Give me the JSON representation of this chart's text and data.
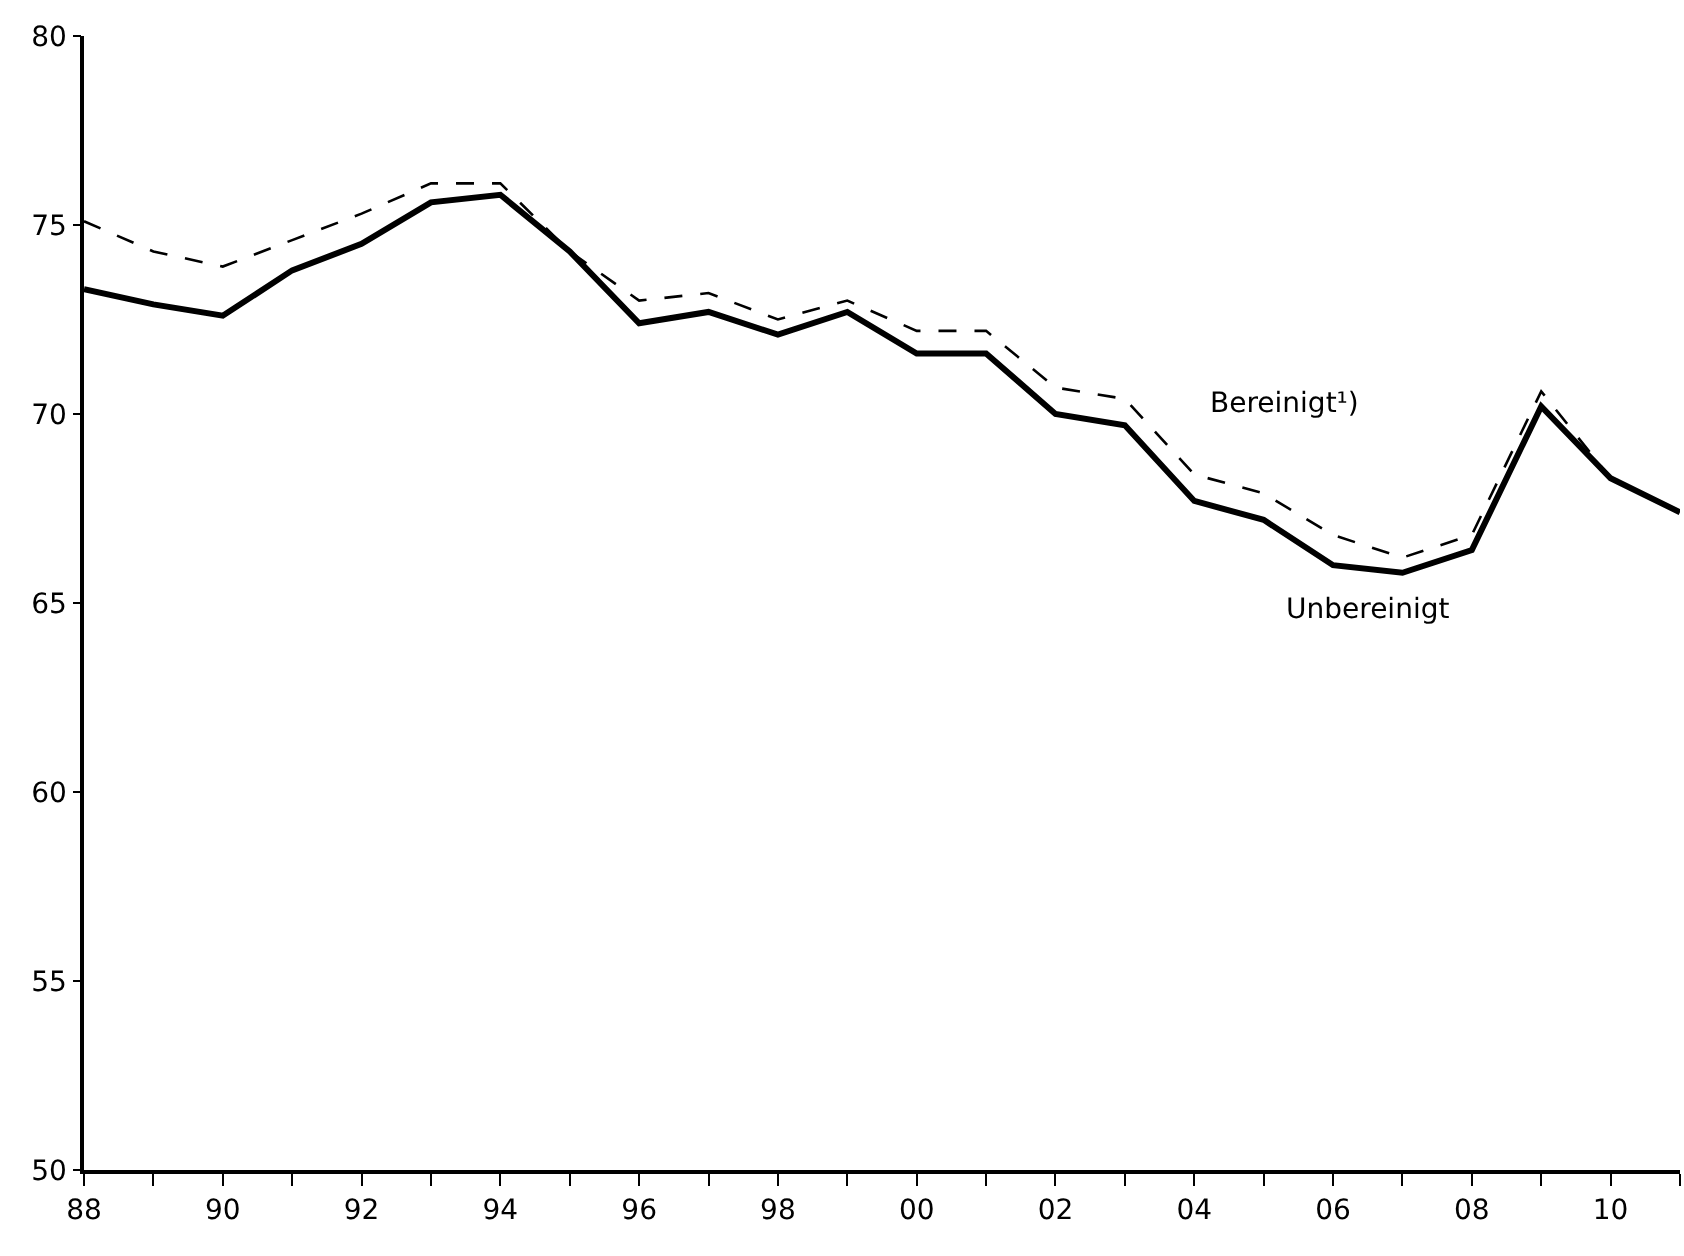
{
  "chart_data": {
    "type": "line",
    "x": [
      1988,
      1989,
      1990,
      1991,
      1992,
      1993,
      1994,
      1995,
      1996,
      1997,
      1998,
      1999,
      2000,
      2001,
      2002,
      2003,
      2004,
      2005,
      2006,
      2007,
      2008,
      2009,
      2010,
      2011
    ],
    "series": [
      {
        "name": "Bereinigt¹)",
        "color": "#000000",
        "line_style": "dashed",
        "values": [
          75.1,
          74.3,
          73.9,
          74.6,
          75.3,
          76.1,
          76.1,
          74.3,
          73.0,
          73.2,
          72.5,
          73.0,
          72.2,
          72.2,
          70.7,
          70.4,
          68.4,
          67.9,
          66.8,
          66.2,
          66.8,
          70.6,
          68.3,
          67.4
        ]
      },
      {
        "name": "Unbereinigt",
        "color": "#000000",
        "line_style": "solid",
        "values": [
          73.3,
          72.9,
          72.6,
          73.8,
          74.5,
          75.6,
          75.8,
          74.3,
          72.4,
          72.7,
          72.1,
          72.7,
          71.6,
          71.6,
          70.0,
          69.7,
          67.7,
          67.2,
          66.0,
          65.8,
          66.4,
          70.2,
          68.3,
          67.4
        ]
      }
    ],
    "xlim": [
      1988,
      2011
    ],
    "xticks": [
      {
        "value": 1988,
        "label": "88"
      },
      {
        "value": 1989,
        "label": null
      },
      {
        "value": 1990,
        "label": "90"
      },
      {
        "value": 1991,
        "label": null
      },
      {
        "value": 1992,
        "label": "92"
      },
      {
        "value": 1993,
        "label": null
      },
      {
        "value": 1994,
        "label": "94"
      },
      {
        "value": 1995,
        "label": null
      },
      {
        "value": 1996,
        "label": "96"
      },
      {
        "value": 1997,
        "label": null
      },
      {
        "value": 1998,
        "label": "98"
      },
      {
        "value": 1999,
        "label": null
      },
      {
        "value": 2000,
        "label": "00"
      },
      {
        "value": 2001,
        "label": null
      },
      {
        "value": 2002,
        "label": "02"
      },
      {
        "value": 2003,
        "label": null
      },
      {
        "value": 2004,
        "label": "04"
      },
      {
        "value": 2005,
        "label": null
      },
      {
        "value": 2006,
        "label": "06"
      },
      {
        "value": 2007,
        "label": null
      },
      {
        "value": 2008,
        "label": "08"
      },
      {
        "value": 2009,
        "label": null
      },
      {
        "value": 2010,
        "label": "10"
      },
      {
        "value": 2011,
        "label": null
      }
    ],
    "ylim": [
      50,
      80
    ],
    "yticks": [
      50,
      55,
      60,
      65,
      70,
      75,
      80
    ],
    "grid": false,
    "legend": false,
    "marker": "none"
  }
}
